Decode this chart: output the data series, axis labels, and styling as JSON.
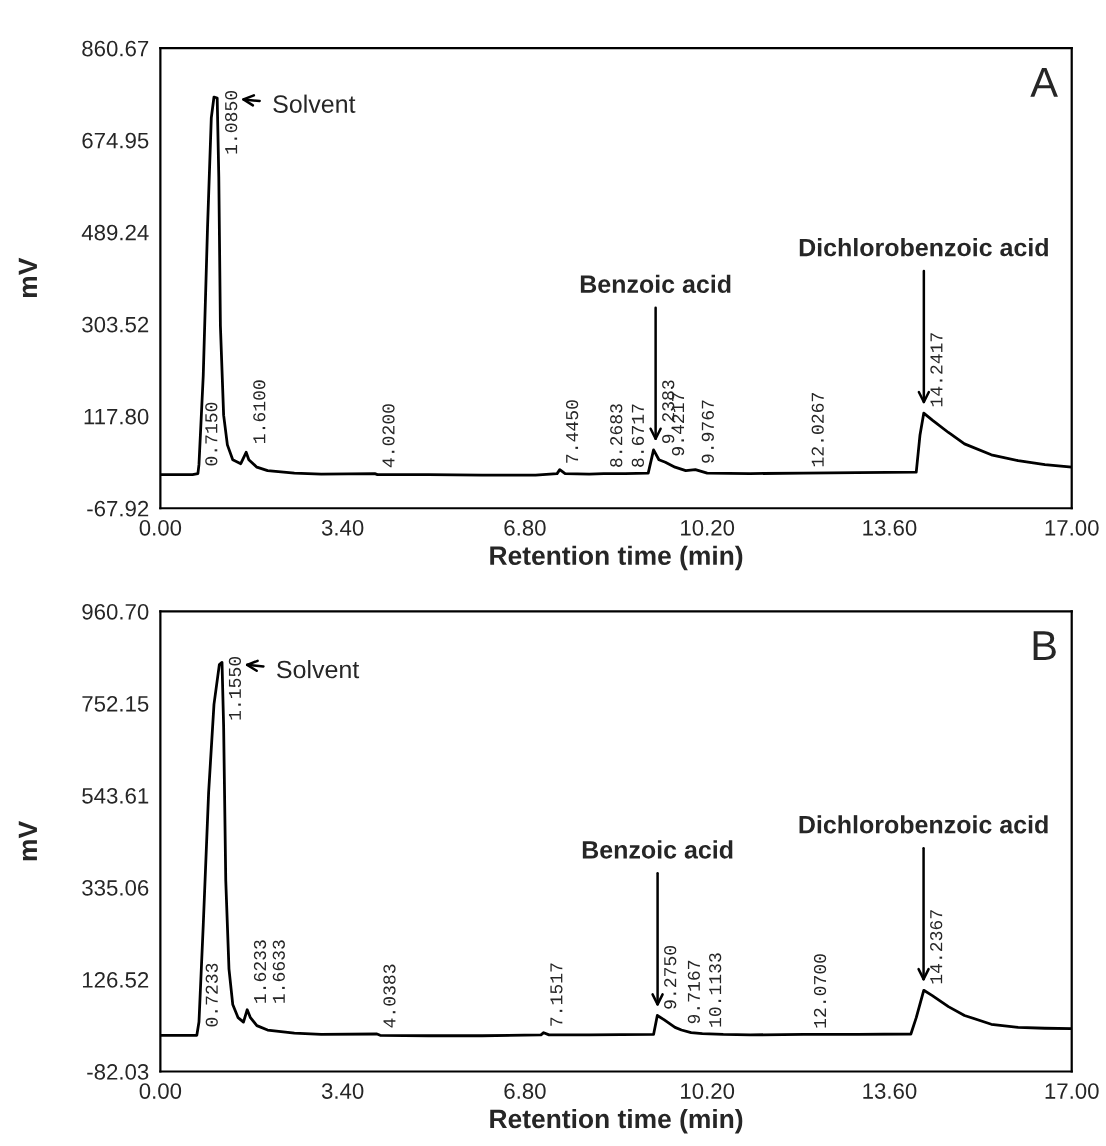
{
  "chart_data": [
    {
      "type": "line",
      "title": "A",
      "xlabel": "Retention time (min)",
      "ylabel": "mV",
      "xlim": [
        0,
        17
      ],
      "xticks": [
        {
          "value": 0,
          "label": "0.00"
        },
        {
          "value": 3.4,
          "label": "3.40"
        },
        {
          "value": 6.8,
          "label": "6.80"
        },
        {
          "value": 10.2,
          "label": "10.20"
        },
        {
          "value": 13.6,
          "label": "13.60"
        },
        {
          "value": 17,
          "label": "17.00"
        }
      ],
      "ylim": [
        -67.92,
        860.67
      ],
      "yticks": [
        -67.92,
        {
          "value": 117.8,
          "label": "117.80"
        },
        303.52,
        489.24,
        674.95,
        860.67
      ],
      "grid": false,
      "legend": false,
      "series": [
        {
          "color": "#000000",
          "x": [
            0,
            0.6,
            0.7,
            0.72,
            0.8,
            0.88,
            0.95,
            1.0,
            1.06,
            1.09,
            1.12,
            1.18,
            1.25,
            1.35,
            1.5,
            1.6,
            1.65,
            1.8,
            2.0,
            2.5,
            3.0,
            4.0,
            4.05,
            5,
            6,
            7.0,
            7.4,
            7.45,
            7.55,
            8.0,
            8.27,
            8.67,
            9.1,
            9.2,
            9.3,
            9.42,
            9.6,
            9.8,
            9.98,
            10.2,
            11,
            12,
            13,
            14.1,
            14.17,
            14.24,
            14.4,
            14.7,
            15.0,
            15.5,
            16,
            16.5,
            17
          ],
          "values": [
            0,
            0,
            2,
            20,
            200,
            500,
            720,
            762,
            760,
            600,
            300,
            120,
            60,
            30,
            22,
            45,
            30,
            15,
            8,
            3,
            1,
            2,
            0,
            0,
            -1,
            -1,
            2,
            10,
            2,
            1,
            2,
            2,
            3,
            50,
            30,
            25,
            15,
            8,
            10,
            3,
            2,
            3,
            4,
            5,
            80,
            124,
            110,
            85,
            62,
            40,
            28,
            20,
            15
          ]
        }
      ],
      "annotations": [
        {
          "text": "Solvent",
          "x": 1.085,
          "y": 762
        },
        {
          "text": "Benzoic acid",
          "x": 9.2383,
          "y": 50
        },
        {
          "text": "Dichlorobenzoic acid",
          "x": 14.2417,
          "y": 124
        },
        {
          "text": "0.7150",
          "x": 0.715,
          "y": 5
        },
        {
          "text": "1.0850",
          "x": 1.085,
          "y": 634
        },
        {
          "text": "1.6100",
          "x": 1.61,
          "y": 50
        },
        {
          "text": "4.0200",
          "x": 4.02,
          "y": 2
        },
        {
          "text": "7.4450",
          "x": 7.445,
          "y": 10
        },
        {
          "text": "8.2683",
          "x": 8.2683,
          "y": 2
        },
        {
          "text": "8.6717",
          "x": 8.6717,
          "y": 2
        },
        {
          "text": "9.2383",
          "x": 9.2383,
          "y": 50
        },
        {
          "text": "9.4217",
          "x": 9.4217,
          "y": 25
        },
        {
          "text": "9.9767",
          "x": 9.9767,
          "y": 10
        },
        {
          "text": "12.0267",
          "x": 12.0267,
          "y": 3
        },
        {
          "text": "14.2417",
          "x": 14.2417,
          "y": 124
        }
      ]
    },
    {
      "type": "line",
      "title": "B",
      "xlabel": "Retention time (min)",
      "ylabel": "mV",
      "xlim": [
        0,
        17
      ],
      "xticks": [
        {
          "value": 0,
          "label": "0.00"
        },
        {
          "value": 3.4,
          "label": "3.40"
        },
        {
          "value": 6.8,
          "label": "6.80"
        },
        {
          "value": 10.2,
          "label": "10.20"
        },
        {
          "value": 13.6,
          "label": "13.60"
        },
        {
          "value": 17,
          "label": "17.00"
        }
      ],
      "ylim": [
        -82.03,
        960.7
      ],
      "yticks": [
        -82.03,
        126.52,
        335.06,
        543.61,
        752.15,
        {
          "value": 960.7,
          "label": "960.70"
        }
      ],
      "grid": false,
      "legend": false,
      "series": [
        {
          "color": "#000000",
          "x": [
            0,
            0.68,
            0.72,
            0.8,
            0.9,
            1.0,
            1.1,
            1.15,
            1.18,
            1.22,
            1.28,
            1.35,
            1.45,
            1.55,
            1.62,
            1.68,
            1.8,
            2.0,
            2.5,
            3.0,
            4.04,
            4.1,
            5,
            6,
            7.1,
            7.15,
            7.25,
            8,
            9.2,
            9.27,
            9.4,
            9.6,
            9.72,
            9.9,
            10.11,
            10.5,
            11,
            12,
            13,
            14.0,
            14.1,
            14.24,
            14.4,
            14.7,
            15.0,
            15.5,
            16,
            16.5,
            17
          ],
          "values": [
            0,
            0,
            30,
            250,
            550,
            750,
            840,
            845,
            700,
            350,
            150,
            70,
            40,
            30,
            58,
            40,
            22,
            12,
            5,
            2,
            3,
            0,
            -1,
            -1,
            1,
            6,
            1,
            1,
            2,
            45,
            35,
            18,
            12,
            6,
            4,
            2,
            1,
            2,
            2,
            3,
            40,
            102,
            90,
            65,
            45,
            25,
            18,
            16,
            15
          ]
        }
      ],
      "annotations": [
        {
          "text": "Solvent",
          "x": 1.155,
          "y": 845
        },
        {
          "text": "Benzoic acid",
          "x": 9.275,
          "y": 45
        },
        {
          "text": "Dichlorobenzoic acid",
          "x": 14.2367,
          "y": 102
        },
        {
          "text": "0.7233",
          "x": 0.7233,
          "y": 5
        },
        {
          "text": "1.1550",
          "x": 1.155,
          "y": 700
        },
        {
          "text": "1.6233",
          "x": 1.6233,
          "y": 58
        },
        {
          "text": "1.6633",
          "x": 1.6633,
          "y": 58
        },
        {
          "text": "4.0383",
          "x": 4.0383,
          "y": 3
        },
        {
          "text": "7.1517",
          "x": 7.1517,
          "y": 6
        },
        {
          "text": "9.2750",
          "x": 9.275,
          "y": 45
        },
        {
          "text": "9.7167",
          "x": 9.7167,
          "y": 12
        },
        {
          "text": "10.1133",
          "x": 10.1133,
          "y": 4
        },
        {
          "text": "12.0700",
          "x": 12.07,
          "y": 2
        },
        {
          "text": "14.2367",
          "x": 14.2367,
          "y": 102
        }
      ]
    }
  ]
}
